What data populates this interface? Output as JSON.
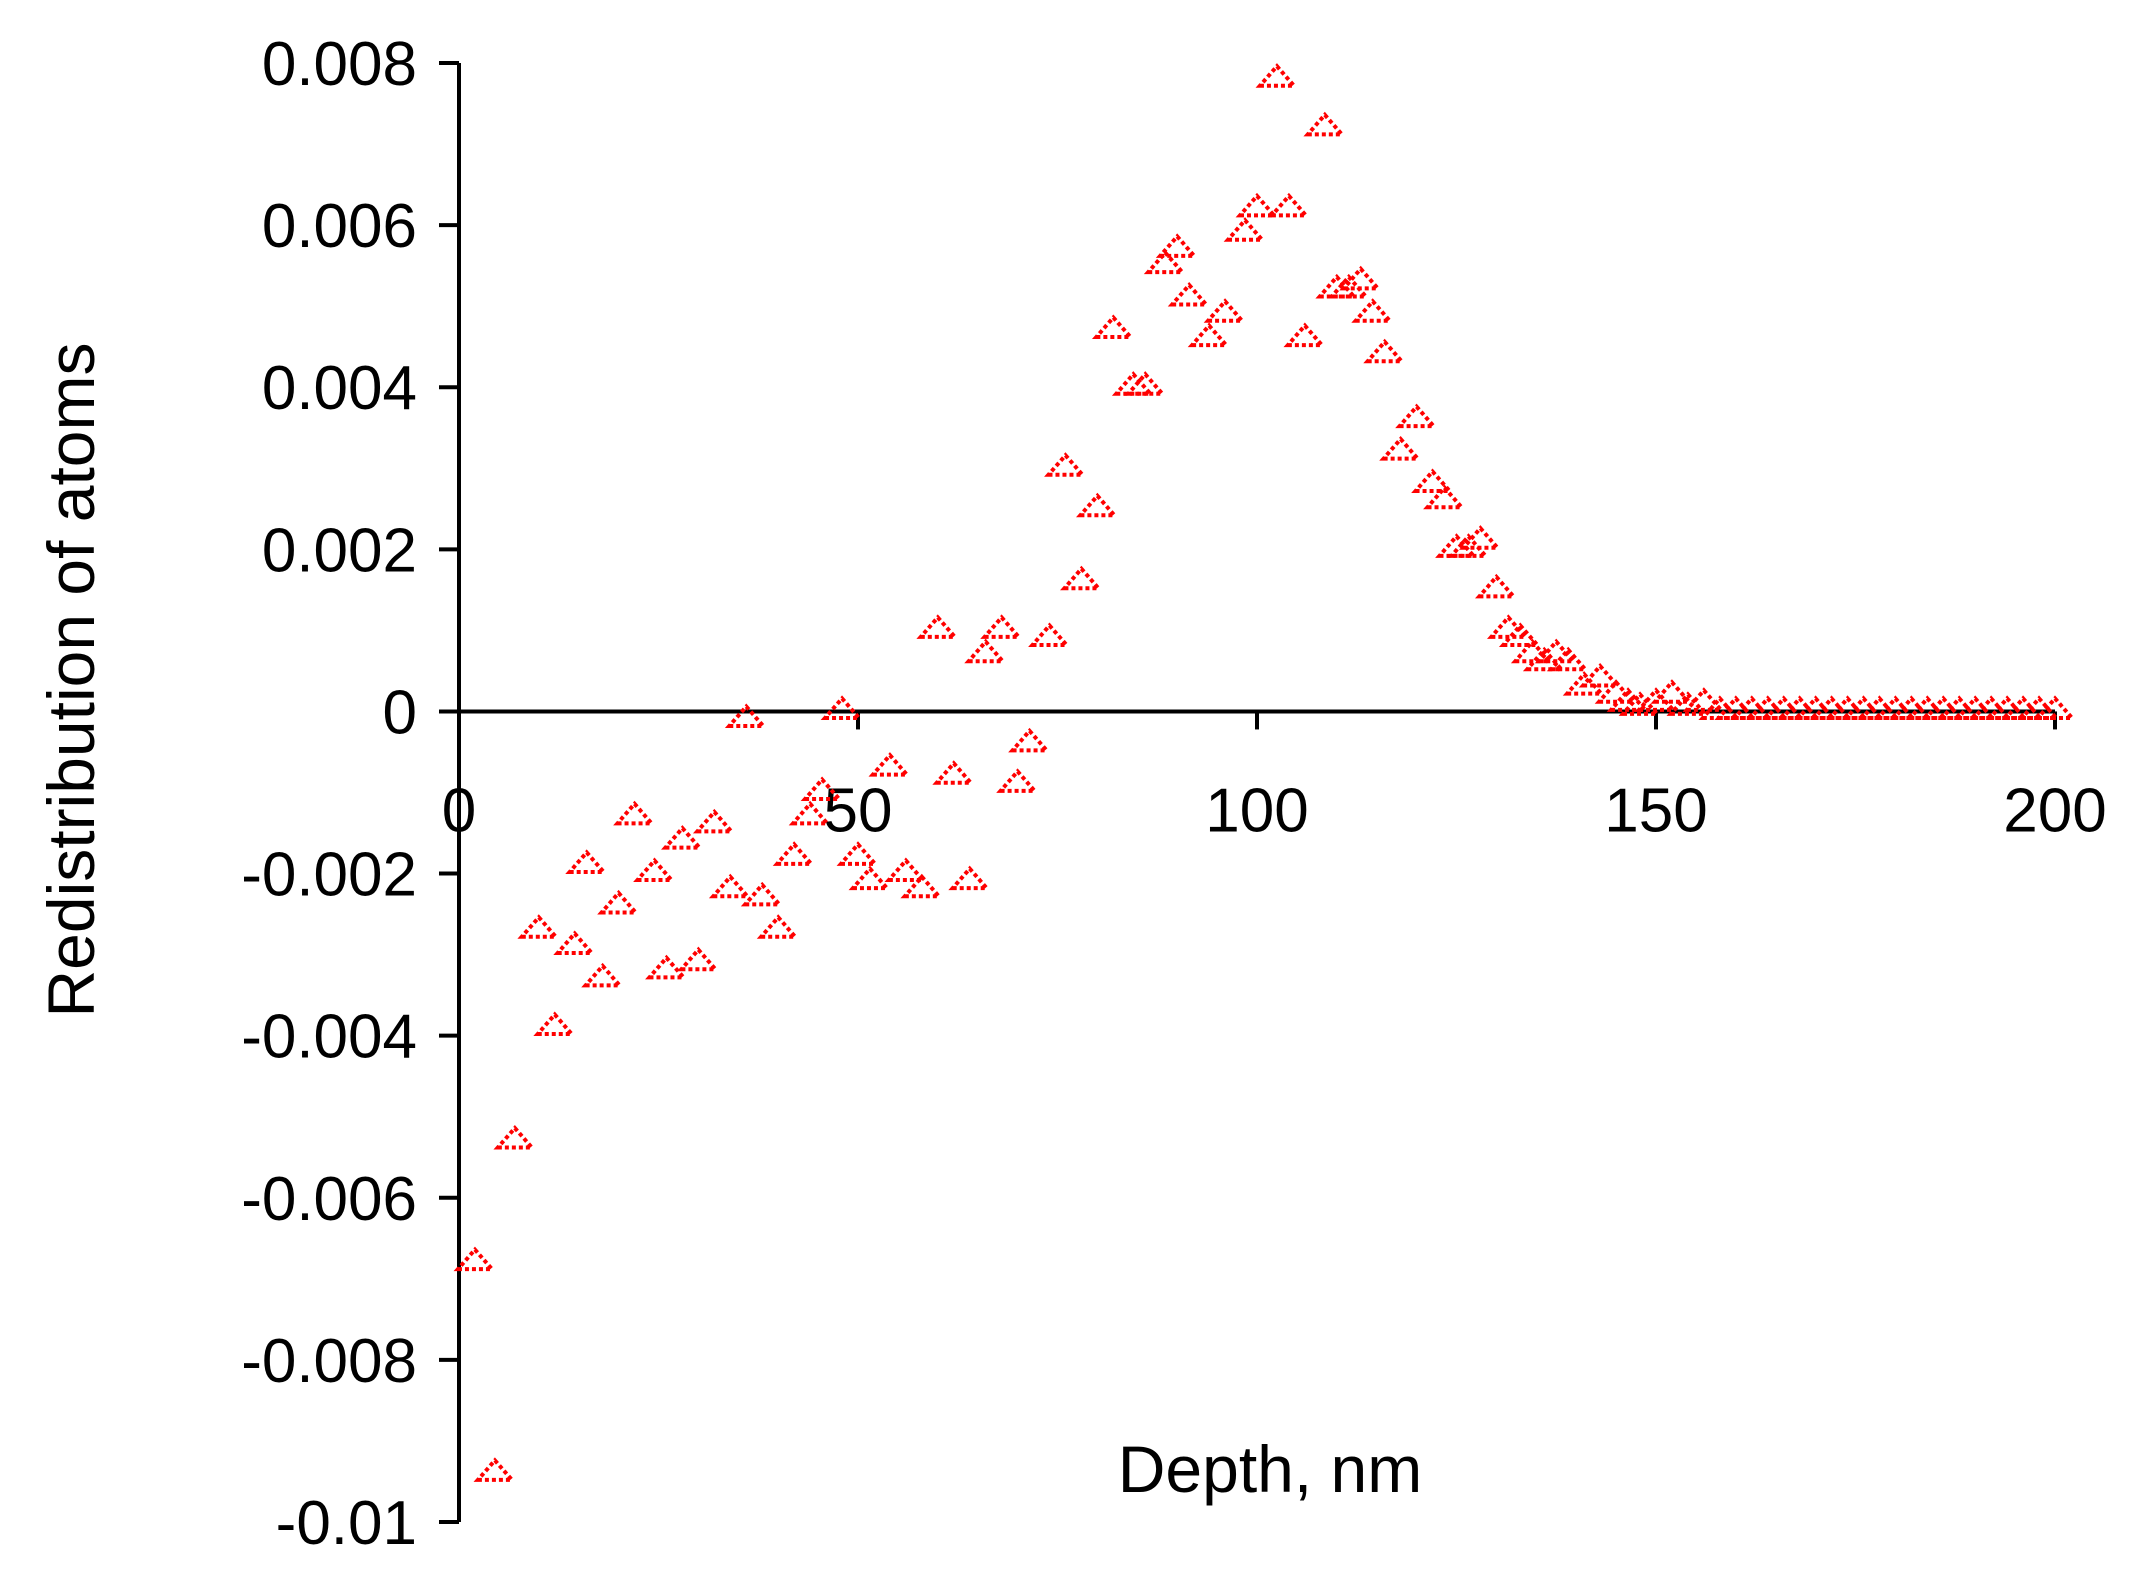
{
  "chart_data": {
    "type": "scatter",
    "title": "",
    "xlabel": "Depth, nm",
    "ylabel": "Redistribution of atoms",
    "xlim": [
      0,
      200
    ],
    "ylim": [
      -0.01,
      0.008
    ],
    "x_ticks": [
      0,
      50,
      100,
      150,
      200
    ],
    "x_tick_labels": [
      "0",
      "50",
      "100",
      "150",
      "200"
    ],
    "y_ticks": [
      0.008,
      0.006,
      0.004,
      0.002,
      0,
      -0.002,
      -0.004,
      -0.006,
      -0.008,
      -0.01
    ],
    "y_tick_labels": [
      "0.008",
      "0.006",
      "0.004",
      "0.002",
      "0",
      "-0.002",
      "-0.004",
      "-0.006",
      "-0.008",
      "-0.01"
    ],
    "grid": false,
    "legend": "none",
    "marker": "triangle",
    "color": "#ff0000",
    "series": [
      {
        "points": [
          [
            2,
            -0.0068
          ],
          [
            4.5,
            -0.0094
          ],
          [
            7,
            -0.0053
          ],
          [
            10,
            -0.0027
          ],
          [
            12,
            -0.0039
          ],
          [
            14.5,
            -0.0029
          ],
          [
            16,
            -0.0019
          ],
          [
            18,
            -0.0033
          ],
          [
            20,
            -0.0024
          ],
          [
            22,
            -0.0013
          ],
          [
            24.5,
            -0.002
          ],
          [
            26,
            -0.0032
          ],
          [
            28,
            -0.0016
          ],
          [
            30,
            -0.0031
          ],
          [
            32,
            -0.0014
          ],
          [
            34,
            -0.0022
          ],
          [
            36,
            -0.0001
          ],
          [
            38,
            -0.0023
          ],
          [
            40,
            -0.0027
          ],
          [
            42,
            -0.0018
          ],
          [
            44,
            -0.0013
          ],
          [
            45.5,
            -0.001
          ],
          [
            48,
            0.0
          ],
          [
            50,
            -0.0018
          ],
          [
            51.5,
            -0.0021
          ],
          [
            54,
            -0.0007
          ],
          [
            56,
            -0.002
          ],
          [
            58,
            -0.0022
          ],
          [
            60,
            0.001
          ],
          [
            62,
            -0.0008
          ],
          [
            64,
            -0.0021
          ],
          [
            66,
            0.0007
          ],
          [
            68,
            0.001
          ],
          [
            70,
            -0.0009
          ],
          [
            71.5,
            -0.0004
          ],
          [
            74,
            0.0009
          ],
          [
            76,
            0.003
          ],
          [
            78,
            0.0016
          ],
          [
            80,
            0.0025
          ],
          [
            82,
            0.0047
          ],
          [
            84.5,
            0.004
          ],
          [
            86,
            0.004
          ],
          [
            88.5,
            0.0055
          ],
          [
            90,
            0.0057
          ],
          [
            91.5,
            0.0051
          ],
          [
            94,
            0.0046
          ],
          [
            96,
            0.0049
          ],
          [
            98.5,
            0.0059
          ],
          [
            100,
            0.0062
          ],
          [
            102.5,
            0.0078
          ],
          [
            104,
            0.0062
          ],
          [
            106,
            0.0046
          ],
          [
            108.5,
            0.0072
          ],
          [
            110,
            0.0052
          ],
          [
            111.5,
            0.0052
          ],
          [
            113,
            0.0053
          ],
          [
            114.5,
            0.0049
          ],
          [
            116,
            0.0044
          ],
          [
            118,
            0.0032
          ],
          [
            120,
            0.0036
          ],
          [
            122,
            0.0028
          ],
          [
            123.5,
            0.0026
          ],
          [
            125,
            0.002
          ],
          [
            126.5,
            0.002
          ],
          [
            128,
            0.0021
          ],
          [
            130,
            0.0015
          ],
          [
            131.5,
            0.001
          ],
          [
            133,
            0.0009
          ],
          [
            134.5,
            0.0007
          ],
          [
            136,
            0.0006
          ],
          [
            137.5,
            0.0007
          ],
          [
            139,
            0.0006
          ],
          [
            141,
            0.0003
          ],
          [
            143,
            0.0004
          ],
          [
            145,
            0.0002
          ],
          [
            146.5,
            0.0001
          ],
          [
            148,
            5e-05
          ],
          [
            150,
            0.0001
          ],
          [
            152,
            0.0002
          ],
          [
            154,
            5e-05
          ],
          [
            156,
            0.0001
          ],
          [
            158,
            0.0
          ],
          [
            160,
            0.0
          ],
          [
            162,
            0.0
          ],
          [
            164,
            0.0
          ],
          [
            166,
            0.0
          ],
          [
            168,
            0.0
          ],
          [
            170,
            0.0
          ],
          [
            172,
            0.0
          ],
          [
            174,
            0.0
          ],
          [
            176,
            0.0
          ],
          [
            178,
            0.0
          ],
          [
            180,
            0.0
          ],
          [
            182,
            0.0
          ],
          [
            184,
            0.0
          ],
          [
            186,
            0.0
          ],
          [
            188,
            0.0
          ],
          [
            190,
            0.0
          ],
          [
            192,
            0.0
          ],
          [
            194,
            0.0
          ],
          [
            196,
            0.0
          ],
          [
            198,
            0.0
          ],
          [
            200,
            0.0
          ]
        ]
      }
    ]
  }
}
